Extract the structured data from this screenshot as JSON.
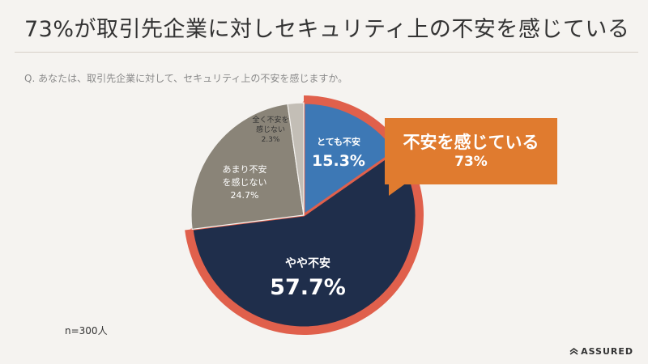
{
  "header": {
    "title": "73%が取引先企業に対しセキュリティ上の不安を感じている",
    "question": "Q. あなたは、取引先企業に対して、セキュリティ上の不安を感じますか。"
  },
  "footer": {
    "sample_size": "n=300人",
    "brand": "ASSURED"
  },
  "callout": {
    "label": "不安を感じている",
    "value": "73%"
  },
  "colors": {
    "very_anxious": "#3d78b5",
    "somewhat_anxious": "#1f2e4b",
    "not_very": "#8a8478",
    "not_at_all": "#c3beb6",
    "highlight_outline": "#e0604c",
    "callout": "#e07b2f"
  },
  "chart_data": {
    "type": "pie",
    "title": "",
    "start": "12 o'clock, clockwise",
    "slices": [
      {
        "label": "とても不安",
        "value": 15.3,
        "value_text": "15.3%"
      },
      {
        "label": "やや不安",
        "value": 57.7,
        "value_text": "57.7%"
      },
      {
        "label": "あまり不安を感じない",
        "value": 24.7,
        "value_text": "24.7%"
      },
      {
        "label": "全く不安を感じない",
        "value": 2.3,
        "value_text": "2.3%"
      }
    ],
    "highlighted_group": [
      "とても不安",
      "やや不安"
    ]
  }
}
